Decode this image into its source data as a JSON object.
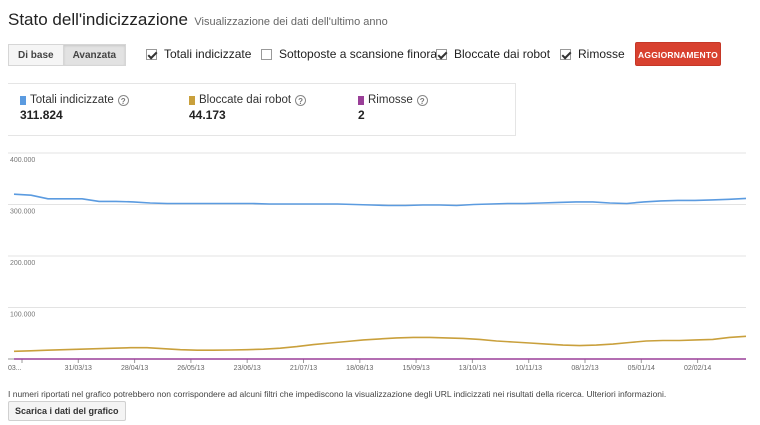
{
  "header": {
    "title": "Stato dell'indicizzazione",
    "subtitle": "Visualizzazione dei dati dell'ultimo anno"
  },
  "view_toggle": {
    "basic": "Di base",
    "advanced": "Avanzata",
    "selected": "Avanzata"
  },
  "filters": [
    {
      "label": "Totali indicizzate",
      "checked": true
    },
    {
      "label": "Sottoposte a scansione finora",
      "checked": false
    },
    {
      "label": "Bloccate dai robot",
      "checked": true
    },
    {
      "label": "Rimosse",
      "checked": true
    }
  ],
  "update_button": "AGGIORNAMENTO",
  "stats": [
    {
      "label": "Totali indicizzate",
      "value": "311.824",
      "color": "#5b9be0"
    },
    {
      "label": "Bloccate dai robot",
      "value": "44.173",
      "color": "#c9a03c"
    },
    {
      "label": "Rimosse",
      "value": "2",
      "color": "#9a3f98"
    }
  ],
  "chart_data": {
    "type": "line",
    "y_tick_labels": [
      "400.000",
      "300.000",
      "200.000",
      "100.000"
    ],
    "ylim": [
      0,
      400000
    ],
    "x_tick_labels": [
      "03...",
      "31/03/13",
      "28/04/13",
      "26/05/13",
      "23/06/13",
      "21/07/13",
      "18/08/13",
      "15/09/13",
      "13/10/13",
      "10/11/13",
      "08/12/13",
      "05/01/14",
      "02/02/14"
    ],
    "grid": true,
    "series": [
      {
        "name": "Totali indicizzate",
        "color": "#5b9be0",
        "values": [
          320000,
          318000,
          311000,
          311000,
          311000,
          306000,
          306000,
          305000,
          303000,
          302000,
          302000,
          302000,
          302000,
          302000,
          302000,
          301000,
          301000,
          301000,
          301000,
          301000,
          300000,
          299000,
          298000,
          298000,
          299000,
          299000,
          298000,
          300000,
          301000,
          302000,
          302000,
          303000,
          304000,
          305000,
          305000,
          303000,
          302000,
          305000,
          307000,
          308000,
          308000,
          309000,
          310000,
          311824
        ]
      },
      {
        "name": "Bloccate dai robot",
        "color": "#c9a03c",
        "values": [
          15000,
          16000,
          17000,
          18000,
          19000,
          20000,
          21000,
          22000,
          22000,
          20000,
          18000,
          17000,
          17000,
          17500,
          18000,
          19000,
          21000,
          24000,
          28000,
          31000,
          34000,
          37000,
          39000,
          41000,
          42000,
          42000,
          41000,
          40000,
          38000,
          35000,
          33000,
          31000,
          29000,
          27000,
          26000,
          27000,
          29000,
          32000,
          35000,
          36000,
          36000,
          37000,
          38000,
          42000,
          44173
        ]
      },
      {
        "name": "Rimosse",
        "color": "#9a3f98",
        "values": [
          2,
          2,
          2,
          2,
          2,
          2,
          2,
          2,
          2,
          2,
          2,
          2,
          2,
          2,
          2,
          2,
          2,
          2,
          2,
          2,
          2,
          2,
          2,
          2,
          2,
          2,
          2,
          2,
          2,
          2
        ]
      }
    ]
  },
  "footer": {
    "note": "I numeri riportati nel grafico potrebbero non corrispondere ad alcuni filtri che impediscono la visualizzazione degli URL indicizzati nei risultati della ricerca. Ulteriori informazioni.",
    "download_button": "Scarica i dati del grafico"
  }
}
